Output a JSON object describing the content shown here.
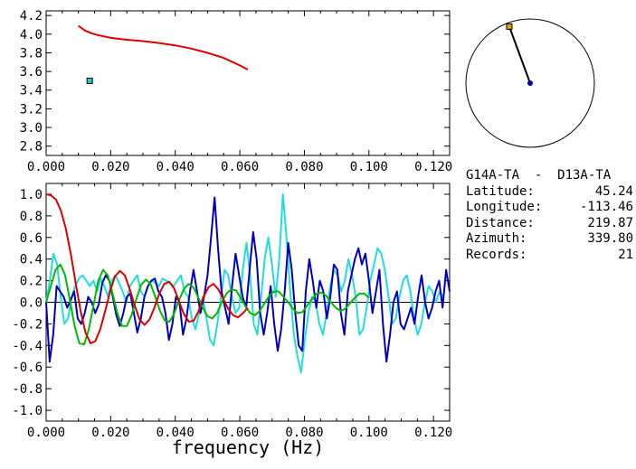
{
  "station_pair": "G14A-TA  -  D13A-TA",
  "info_rows": [
    {
      "label": "Latitude:",
      "value": "45.24"
    },
    {
      "label": "Longitude:",
      "value": "-113.46"
    },
    {
      "label": "Distance:",
      "value": "219.87"
    },
    {
      "label": "Azimuth:",
      "value": "339.80"
    },
    {
      "label": "Records:",
      "value": "21"
    }
  ],
  "colors": {
    "red": "#dd0000",
    "green": "#00bb00",
    "blue": "#0000bb",
    "cyan": "#22dddd",
    "marker": "#22cccc"
  },
  "chart_data": [
    {
      "type": "line",
      "xlim": [
        0,
        0.125
      ],
      "ylim": [
        2.7,
        4.25
      ],
      "xticks": [
        "0.000",
        "0.020",
        "0.040",
        "0.060",
        "0.080",
        "0.100",
        "0.120"
      ],
      "yticks": [
        "2.8",
        "3.0",
        "3.2",
        "3.4",
        "3.6",
        "3.8",
        "4.0",
        "4.2"
      ],
      "series": [
        {
          "color": "#dd0000",
          "x": [
            0.01,
            0.012,
            0.014,
            0.016,
            0.02,
            0.025,
            0.03,
            0.035,
            0.04,
            0.045,
            0.05,
            0.055,
            0.06,
            0.0625
          ],
          "y": [
            4.09,
            4.04,
            4.01,
            3.99,
            3.96,
            3.94,
            3.925,
            3.905,
            3.88,
            3.845,
            3.8,
            3.745,
            3.665,
            3.62
          ]
        }
      ],
      "points": [
        {
          "x": 0.0135,
          "y": 3.5,
          "color": "#22cccc"
        }
      ]
    },
    {
      "type": "line",
      "xlabel": "frequency (Hz)",
      "xlim": [
        0,
        0.125
      ],
      "ylim": [
        -1.1,
        1.1
      ],
      "xticks": [
        "0.000",
        "0.020",
        "0.040",
        "0.060",
        "0.080",
        "0.100",
        "0.120"
      ],
      "yticks": [
        "-1.0",
        "-0.8",
        "-0.6",
        "-0.4",
        "-0.2",
        "0.0",
        "0.2",
        "0.4",
        "0.6",
        "0.8",
        "1.0"
      ],
      "zero_line": true,
      "series": [
        {
          "color": "#dd0000",
          "x_start": 0,
          "x_end": 0.0625,
          "y": [
            1.0,
            0.99,
            0.95,
            0.85,
            0.68,
            0.45,
            0.18,
            -0.08,
            -0.28,
            -0.38,
            -0.36,
            -0.25,
            -0.08,
            0.1,
            0.24,
            0.29,
            0.25,
            0.12,
            -0.03,
            -0.16,
            -0.21,
            -0.16,
            -0.05,
            0.08,
            0.17,
            0.19,
            0.13,
            0.01,
            -0.11,
            -0.18,
            -0.17,
            -0.08,
            0.05,
            0.14,
            0.17,
            0.12,
            0.03,
            -0.06,
            -0.12,
            -0.14,
            -0.1,
            -0.05
          ]
        },
        {
          "color": "#00bb00",
          "x_start": 0,
          "x_end": 0.1,
          "y": [
            0.0,
            0.15,
            0.3,
            0.35,
            0.25,
            0.02,
            -0.22,
            -0.38,
            -0.39,
            -0.25,
            -0.02,
            0.2,
            0.3,
            0.25,
            0.08,
            -0.1,
            -0.22,
            -0.22,
            -0.12,
            0.03,
            0.16,
            0.21,
            0.17,
            0.05,
            -0.08,
            -0.17,
            -0.18,
            -0.1,
            0.02,
            0.12,
            0.17,
            0.14,
            0.05,
            -0.05,
            -0.13,
            -0.15,
            -0.1,
            0.0,
            0.08,
            0.12,
            0.11,
            0.04,
            -0.04,
            -0.1,
            -0.12,
            -0.08,
            -0.01,
            0.06,
            0.1,
            0.1,
            0.05,
            0.0,
            -0.06,
            -0.1,
            -0.09,
            -0.03,
            0.03,
            0.08,
            0.09,
            0.06,
            0.0,
            -0.05,
            -0.08,
            -0.06,
            -0.01,
            0.04,
            0.08,
            0.08,
            0.04
          ]
        },
        {
          "color": "#0000bb",
          "x_start": 0,
          "x_end": 0.125,
          "y": [
            0.0,
            -0.55,
            -0.3,
            0.15,
            0.1,
            0.05,
            -0.05,
            0.02,
            0.1,
            -0.15,
            -0.2,
            -0.1,
            0.05,
            0.0,
            -0.1,
            -0.02,
            0.18,
            0.25,
            0.2,
            0.05,
            -0.12,
            -0.22,
            -0.1,
            0.05,
            0.08,
            -0.1,
            -0.28,
            -0.15,
            0.05,
            0.15,
            0.2,
            0.22,
            0.1,
            0.05,
            -0.1,
            -0.35,
            -0.2,
            0.05,
            0.0,
            -0.3,
            -0.15,
            0.1,
            0.3,
            0.1,
            -0.1,
            0.05,
            0.25,
            0.6,
            0.97,
            0.5,
            0.1,
            -0.05,
            -0.2,
            0.15,
            0.45,
            0.25,
            0.05,
            -0.05,
            0.3,
            0.65,
            0.4,
            -0.1,
            -0.3,
            -0.1,
            0.15,
            -0.2,
            -0.45,
            -0.25,
            0.1,
            0.55,
            0.3,
            -0.1,
            -0.4,
            -0.45,
            0.1,
            0.4,
            0.2,
            -0.05,
            0.2,
            0.1,
            -0.15,
            0.05,
            0.35,
            0.3,
            -0.1,
            -0.3,
            0.1,
            0.25,
            0.4,
            0.5,
            0.35,
            0.45,
            0.2,
            -0.1,
            0.1,
            0.3,
            -0.2,
            -0.55,
            -0.3,
            0.0,
            0.1,
            -0.2,
            -0.25,
            -0.15,
            -0.05,
            -0.2,
            0.05,
            0.25,
            0.0,
            -0.15,
            -0.05,
            0.1,
            0.2,
            -0.05,
            0.3,
            0.1
          ]
        },
        {
          "color": "#22dddd",
          "x_start": 0,
          "x_end": 0.123,
          "y": [
            0.0,
            0.2,
            0.45,
            0.35,
            0.05,
            -0.2,
            -0.15,
            0.05,
            0.15,
            0.22,
            0.25,
            0.2,
            0.15,
            0.2,
            0.1,
            0.22,
            0.15,
            0.05,
            0.2,
            0.25,
            0.18,
            0.1,
            0.0,
            0.15,
            0.2,
            0.25,
            0.1,
            0.05,
            0.15,
            0.2,
            0.18,
            0.15,
            0.22,
            0.2,
            0.18,
            0.15,
            0.2,
            0.25,
            0.1,
            0.05,
            -0.15,
            -0.25,
            -0.1,
            0.05,
            -0.15,
            -0.35,
            -0.4,
            -0.2,
            0.05,
            0.3,
            0.25,
            0.05,
            -0.1,
            -0.05,
            0.3,
            0.55,
            0.25,
            -0.2,
            -0.3,
            0.05,
            0.4,
            0.6,
            0.35,
            0.05,
            0.4,
            1.0,
            0.6,
            0.1,
            -0.3,
            -0.5,
            -0.65,
            -0.35,
            -0.1,
            0.05,
            0.0,
            -0.2,
            -0.3,
            -0.1,
            0.15,
            0.3,
            0.25,
            0.1,
            0.2,
            0.4,
            0.25,
            0.05,
            -0.3,
            -0.25,
            -0.05,
            0.2,
            0.35,
            0.5,
            0.45,
            0.3,
            0.05,
            -0.2,
            -0.15,
            0.05,
            0.2,
            0.25,
            0.1,
            -0.15,
            -0.3,
            -0.2,
            0.0,
            0.15,
            0.1,
            0.0,
            0.1,
            0.05
          ]
        }
      ]
    }
  ],
  "polar": {
    "azimuth": 339.8,
    "radius_fraction": 0.94,
    "endpoint_color": "#ddaa00",
    "center_color": "#0000bb"
  }
}
